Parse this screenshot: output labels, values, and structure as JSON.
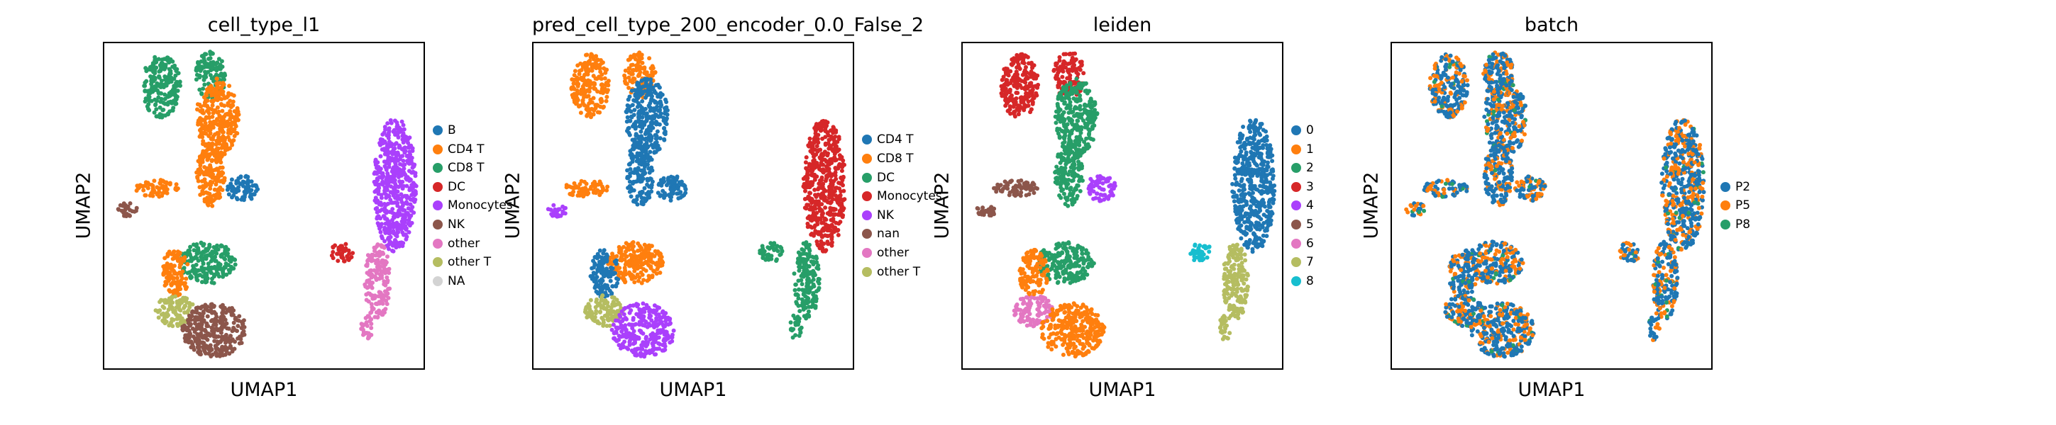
{
  "chart_data": [
    {
      "type": "scatter",
      "title": "cell_type_l1",
      "xlabel": "UMAP1",
      "ylabel": "UMAP2",
      "grid": false,
      "legend_position": "right",
      "series": [
        {
          "name": "B",
          "color": "#1f77b4"
        },
        {
          "name": "CD4 T",
          "color": "#ff7f0e"
        },
        {
          "name": "CD8 T",
          "color": "#279e68"
        },
        {
          "name": "DC",
          "color": "#d62728"
        },
        {
          "name": "Monocytes",
          "color": "#aa40fc"
        },
        {
          "name": "NK",
          "color": "#8c564b"
        },
        {
          "name": "other",
          "color": "#e377c2"
        },
        {
          "name": "other T",
          "color": "#b5bd61"
        },
        {
          "name": "NA",
          "color": "#d3d3d3"
        }
      ],
      "region_map": {
        "top": "CD8 T",
        "upper": "CD4 T",
        "armL": "CD4 T",
        "armTip": "NK",
        "armR": "B",
        "mid": "CD8 T",
        "midL": "CD4 T",
        "lowL": "other T",
        "bottom": "NK",
        "mono": "Monocytes",
        "monoTail": "other",
        "dc": "DC"
      }
    },
    {
      "type": "scatter",
      "title": "pred_cell_type_200_encoder_0.0_False_2",
      "xlabel": "UMAP1",
      "ylabel": "UMAP2",
      "grid": false,
      "legend_position": "right",
      "series": [
        {
          "name": "CD4 T",
          "color": "#1f77b4"
        },
        {
          "name": "CD8 T",
          "color": "#ff7f0e"
        },
        {
          "name": "DC",
          "color": "#279e68"
        },
        {
          "name": "Monocytes",
          "color": "#d62728"
        },
        {
          "name": "NK",
          "color": "#aa40fc"
        },
        {
          "name": "nan",
          "color": "#8c564b"
        },
        {
          "name": "other",
          "color": "#e377c2"
        },
        {
          "name": "other T",
          "color": "#b5bd61"
        }
      ],
      "region_map": {
        "top": "CD8 T",
        "upper": "CD4 T",
        "armL": "CD8 T",
        "armTip": "NK",
        "armR": "CD4 T",
        "mid": "CD8 T",
        "midL": "CD4 T",
        "lowL": "other T",
        "bottom": "NK",
        "mono": "Monocytes",
        "monoTail": "DC",
        "dc": "DC"
      }
    },
    {
      "type": "scatter",
      "title": "leiden",
      "xlabel": "UMAP1",
      "ylabel": "UMAP2",
      "grid": false,
      "legend_position": "right",
      "series": [
        {
          "name": "0",
          "color": "#1f77b4"
        },
        {
          "name": "1",
          "color": "#ff7f0e"
        },
        {
          "name": "2",
          "color": "#279e68"
        },
        {
          "name": "3",
          "color": "#d62728"
        },
        {
          "name": "4",
          "color": "#aa40fc"
        },
        {
          "name": "5",
          "color": "#8c564b"
        },
        {
          "name": "6",
          "color": "#e377c2"
        },
        {
          "name": "7",
          "color": "#b5bd61"
        },
        {
          "name": "8",
          "color": "#17becf"
        }
      ],
      "region_map": {
        "top": "3",
        "upper": "2",
        "armL": "5",
        "armTip": "5",
        "armR": "4",
        "mid": "2",
        "midL": "1",
        "lowL": "6",
        "bottom": "1",
        "mono": "0",
        "monoTail": "7",
        "dc": "8"
      }
    },
    {
      "type": "scatter",
      "title": "batch",
      "xlabel": "UMAP1",
      "ylabel": "UMAP2",
      "grid": false,
      "legend_position": "right",
      "series": [
        {
          "name": "P2",
          "color": "#1f77b4"
        },
        {
          "name": "P5",
          "color": "#ff7f0e"
        },
        {
          "name": "P8",
          "color": "#279e68"
        }
      ],
      "mixed": true
    }
  ]
}
